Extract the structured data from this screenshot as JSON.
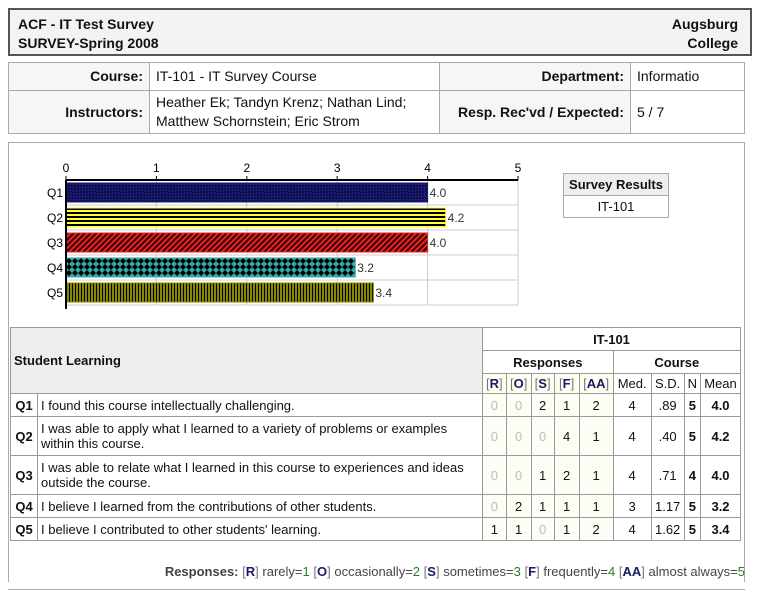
{
  "header": {
    "title": "ACF - IT Test Survey",
    "subtitle": "SURVEY-Spring 2008",
    "institution_line1": "Augsburg",
    "institution_line2": "College"
  },
  "info": {
    "course_label": "Course:",
    "course": "IT-101 - IT Survey Course",
    "department_label": "Department:",
    "department": "Informatio",
    "instructors_label": "Instructors:",
    "instructors_line1": "Heather Ek; Tandyn Krenz; Nathan Lind;",
    "instructors_line2": "Matthew Schornstein; Eric Strom",
    "resp_label": "Resp. Rec'vd / Expected:",
    "resp": "5 / 7"
  },
  "survey_results": {
    "title": "Survey Results",
    "item": "IT-101"
  },
  "chart_data": {
    "type": "bar",
    "orientation": "horizontal",
    "categories": [
      "Q1",
      "Q2",
      "Q3",
      "Q4",
      "Q5"
    ],
    "values": [
      4.0,
      4.2,
      4.0,
      3.2,
      3.4
    ],
    "value_labels": [
      "4.0",
      "4.2",
      "4.0",
      "3.2",
      "3.4"
    ],
    "xlim": [
      0,
      5
    ],
    "ticks": [
      "0",
      "1",
      "2",
      "3",
      "4",
      "5"
    ],
    "grid": true,
    "colors": [
      "#1a1a7a",
      "#ffff33",
      "#ee2222",
      "#33aaaa",
      "#888800"
    ]
  },
  "table": {
    "section": "Student Learning",
    "group": "IT-101",
    "responses_label": "Responses",
    "course_label": "Course",
    "resp_cols": [
      {
        "pre": "[",
        "key": "R",
        "post": "]"
      },
      {
        "pre": "[",
        "key": "O",
        "post": "]"
      },
      {
        "pre": "[",
        "key": "S",
        "post": "]"
      },
      {
        "pre": "[",
        "key": "F",
        "post": "]"
      },
      {
        "pre": "[",
        "key": "AA",
        "post": "]"
      }
    ],
    "stat_cols": [
      "Med.",
      "S.D.",
      "N",
      "Mean"
    ],
    "rows": [
      {
        "q": "Q1",
        "text": "I found this course intellectually challenging.",
        "r": [
          "0",
          "0",
          "2",
          "1",
          "2"
        ],
        "med": "4",
        "sd": ".89",
        "n": "5",
        "mean": "4.0"
      },
      {
        "q": "Q2",
        "text": "I was able to apply what I learned to a variety of problems or examples within this course.",
        "r": [
          "0",
          "0",
          "0",
          "4",
          "1"
        ],
        "med": "4",
        "sd": ".40",
        "n": "5",
        "mean": "4.2"
      },
      {
        "q": "Q3",
        "text": "I was able to relate what I learned in this course to experiences and ideas outside the course.",
        "r": [
          "0",
          "0",
          "1",
          "2",
          "1"
        ],
        "med": "4",
        "sd": ".71",
        "n": "4",
        "mean": "4.0"
      },
      {
        "q": "Q4",
        "text": "I believe I learned from the contributions of other students.",
        "r": [
          "0",
          "2",
          "1",
          "1",
          "1"
        ],
        "med": "3",
        "sd": "1.17",
        "n": "5",
        "mean": "3.2"
      },
      {
        "q": "Q5",
        "text": "I believe I contributed to other students' learning.",
        "r": [
          "1",
          "1",
          "0",
          "1",
          "2"
        ],
        "med": "4",
        "sd": "1.62",
        "n": "5",
        "mean": "3.4"
      }
    ]
  },
  "legend": {
    "label": "Responses:",
    "items": [
      {
        "key": "R",
        "text": "rarely=",
        "val": "1"
      },
      {
        "key": "O",
        "text": "occasionally=",
        "val": "2"
      },
      {
        "key": "S",
        "text": "sometimes=",
        "val": "3"
      },
      {
        "key": "F",
        "text": "frequently=",
        "val": "4"
      },
      {
        "key": "AA",
        "text": "almost always=",
        "val": "5"
      }
    ]
  }
}
